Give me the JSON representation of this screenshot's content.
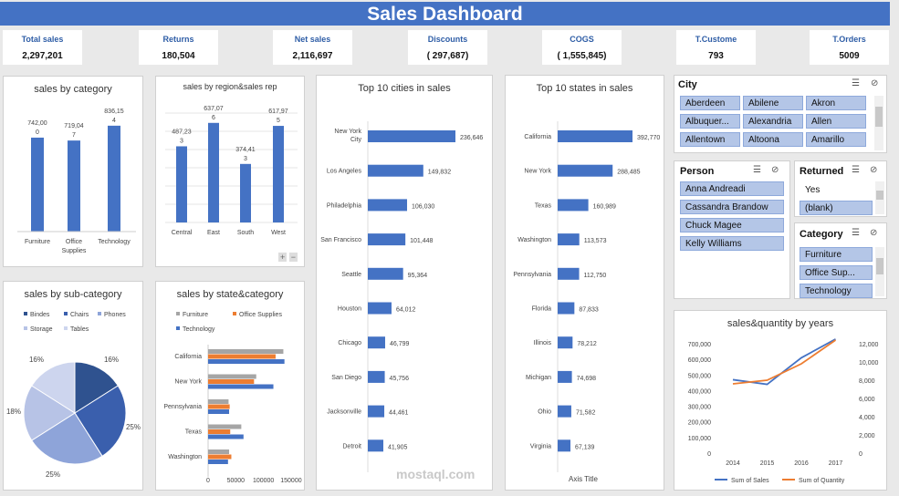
{
  "title": "Sales Dashboard",
  "kpis": [
    {
      "label": "Total sales",
      "value": "2,297,201"
    },
    {
      "label": "Returns",
      "value": "180,504"
    },
    {
      "label": "Net sales",
      "value": "2,116,697"
    },
    {
      "label": "Discounts",
      "value": "( 297,687)"
    },
    {
      "label": "COGS",
      "value": "( 1,555,845)"
    },
    {
      "label": "T.Custome",
      "value": "793"
    },
    {
      "label": "T.Orders",
      "value": "5009"
    }
  ],
  "colors": {
    "accent": "#4472c4",
    "orange": "#ed7d31",
    "gray": "#a5a5a5"
  },
  "charts": {
    "category": {
      "title": "sales by category",
      "categories": [
        "Furniture",
        "Office Supplies",
        "Technology"
      ],
      "values": [
        742000,
        719047,
        836154
      ],
      "labels": [
        "742,00\n0",
        "719,04\n7",
        "836,15\n4"
      ],
      "ylim": [
        0,
        900000
      ]
    },
    "region": {
      "title": "sales by region&sales rep",
      "categories": [
        "Central",
        "East",
        "South",
        "West"
      ],
      "values": [
        487233,
        637076,
        374413,
        617975
      ],
      "labels": [
        "487,23\n3",
        "637,07\n6",
        "374,41\n3",
        "617,97\n5"
      ],
      "ylim": [
        0,
        700000
      ]
    },
    "cities": {
      "title": "Top 10 cities in sales",
      "categories": [
        "New York City",
        "Los Angeles",
        "Philadelphia",
        "San Francisco",
        "Seattle",
        "Houston",
        "Chicago",
        "San Diego",
        "Jacksonville",
        "Detroit"
      ],
      "values": [
        236646,
        149832,
        106030,
        101448,
        95364,
        64012,
        46799,
        45756,
        44461,
        41905
      ],
      "labels": [
        "236,646",
        "149,832",
        "106,030",
        "101,448",
        "95,364",
        "64,012",
        "46,799",
        "45,756",
        "44,461",
        "41,905"
      ]
    },
    "states": {
      "title": "Top 10 states in sales",
      "categories": [
        "California",
        "New York",
        "Texas",
        "Washington",
        "Pennsylvania",
        "Florida",
        "Illinois",
        "Michigan",
        "Ohio",
        "Virginia"
      ],
      "values": [
        392770,
        288485,
        160989,
        113573,
        112750,
        87833,
        78212,
        74698,
        71582,
        67139
      ],
      "labels": [
        "392,770",
        "288,485",
        "160,989",
        "113,573",
        "112,750",
        "87,833",
        "78,212",
        "74,698",
        "71,582",
        "67,139"
      ],
      "xlabel": "Axis Title"
    },
    "subcat": {
      "title": "sales by sub-category",
      "legend": [
        "Bindes",
        "Chairs",
        "Phones",
        "Storage",
        "Tables"
      ],
      "values": [
        16,
        25,
        25,
        18,
        16
      ],
      "labels": [
        "16%",
        "25%",
        "25%",
        "18%",
        "16%"
      ],
      "colors": [
        "#2f528f",
        "#3a5fad",
        "#8ea4d9",
        "#b7c3e6",
        "#cdd5ee"
      ]
    },
    "statecat": {
      "title": "sales by state&category",
      "legend": [
        "Furniture",
        "Office Supplies",
        "Technology"
      ],
      "states": [
        "California",
        "New York",
        "Pennsylvania",
        "Texas",
        "Washington"
      ],
      "series": [
        {
          "name": "Furniture",
          "values": [
            136000,
            87000,
            37000,
            60000,
            38000
          ]
        },
        {
          "name": "Office Supplies",
          "values": [
            122000,
            83000,
            39000,
            40000,
            42000
          ]
        },
        {
          "name": "Technology",
          "values": [
            138000,
            118000,
            38000,
            64000,
            36000
          ]
        }
      ],
      "ticks": [
        "0",
        "50000",
        "100000",
        "150000"
      ],
      "xlim": [
        0,
        160000
      ]
    },
    "years": {
      "title": "sales&quantity by years",
      "years": [
        "2014",
        "2015",
        "2016",
        "2017"
      ],
      "sales": [
        470000,
        440000,
        610000,
        730000
      ],
      "quantity": [
        7600,
        8000,
        9800,
        12400
      ],
      "yleft": [
        "700,000",
        "600,000",
        "500,000",
        "400,000",
        "300,000",
        "200,000",
        "100,000",
        "0"
      ],
      "yright": [
        "12,000",
        "10,000",
        "8,000",
        "6,000",
        "4,000",
        "2,000",
        "0"
      ],
      "legend": [
        "Sum of Sales",
        "Sum of Quantity"
      ]
    }
  },
  "slicers": {
    "city": {
      "title": "City",
      "items": [
        "Aberdeen",
        "Abilene",
        "Akron",
        "Albuquer...",
        "Alexandria",
        "Allen",
        "Allentown",
        "Altoona",
        "Amarillo"
      ]
    },
    "person": {
      "title": "Person",
      "items": [
        "Anna Andreadi",
        "Cassandra Brandow",
        "Chuck Magee",
        "Kelly Williams"
      ]
    },
    "returned": {
      "title": "Returned",
      "items": [
        "Yes",
        "(blank)"
      ]
    },
    "category": {
      "title": "Category",
      "items": [
        "Furniture",
        "Office Sup...",
        "Technology"
      ]
    }
  },
  "watermark": "mostaql.com",
  "region_buttons": [
    "+",
    "−"
  ]
}
